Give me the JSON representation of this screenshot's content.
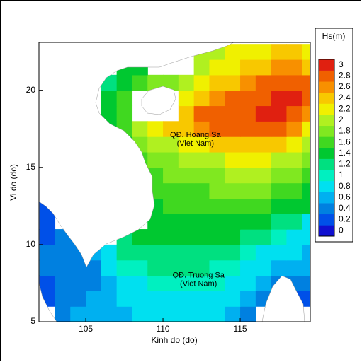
{
  "chart_data": {
    "type": "heatmap",
    "xlabel": "Kinh do (do)",
    "ylabel": "Vi do (do)",
    "xlim": [
      101.97,
      119.54
    ],
    "ylim": [
      5,
      23.1
    ],
    "xticks": [
      105,
      110,
      115
    ],
    "yticks": [
      5,
      10,
      15,
      20
    ],
    "annotations": [
      {
        "lines": [
          "QĐ. Hoang Sa",
          "(Viet Nam)"
        ],
        "lon": 112.1,
        "lat": 17.1
      },
      {
        "lines": [
          "QĐ. Truong Sa",
          "(Viet Nam)"
        ],
        "lon": 112.3,
        "lat": 8.0
      }
    ],
    "field": {
      "lon": [
        102.5,
        103.5,
        104.5,
        105.5,
        106.5,
        107.5,
        108.5,
        109.5,
        110.5,
        111.5,
        112.5,
        113.5,
        114.5,
        115.5,
        116.5,
        117.5,
        118.5,
        119.5
      ],
      "lat": [
        5.5,
        6.5,
        7.5,
        8.5,
        9.5,
        10.5,
        11.5,
        12.5,
        13.5,
        14.5,
        15.5,
        16.5,
        17.5,
        18.5,
        19.5,
        20.5,
        21.5,
        22.5
      ],
      "hs": [
        [
          null,
          0.4,
          0.6,
          0.6,
          0.7,
          0.7,
          0.8,
          0.8,
          0.8,
          0.8,
          0.8,
          0.8,
          0.7,
          0.5,
          null,
          null,
          null,
          null
        ],
        [
          0.2,
          0.4,
          0.5,
          0.6,
          0.7,
          0.8,
          0.8,
          0.9,
          0.9,
          0.9,
          0.9,
          0.9,
          0.8,
          0.6,
          0.4,
          0.3,
          0.3,
          0.3
        ],
        [
          0.3,
          0.4,
          0.4,
          0.5,
          0.7,
          0.9,
          0.9,
          1.0,
          1.0,
          1.0,
          1.0,
          1.0,
          0.9,
          0.8,
          0.6,
          0.5,
          0.4,
          0.5
        ],
        [
          0.4,
          0.4,
          0.4,
          0.5,
          0.8,
          1.0,
          1.0,
          1.1,
          1.1,
          1.1,
          1.1,
          1.0,
          1.0,
          0.9,
          0.8,
          0.7,
          0.6,
          0.6
        ],
        [
          0.4,
          0.4,
          0.5,
          0.6,
          0.9,
          1.1,
          1.2,
          1.2,
          1.2,
          1.2,
          1.2,
          1.2,
          1.1,
          1.0,
          0.9,
          0.9,
          0.8,
          0.7
        ],
        [
          0.3,
          0.4,
          0.5,
          null,
          null,
          1.2,
          1.3,
          1.3,
          1.3,
          1.3,
          1.3,
          1.3,
          1.3,
          1.2,
          1.1,
          1.0,
          0.9,
          0.8
        ],
        [
          0.3,
          null,
          null,
          null,
          null,
          null,
          null,
          1.4,
          1.4,
          1.4,
          1.4,
          1.4,
          1.4,
          1.4,
          1.3,
          1.2,
          1.1,
          0.9
        ],
        [
          0.3,
          null,
          null,
          null,
          null,
          null,
          null,
          1.5,
          1.6,
          1.6,
          1.6,
          1.6,
          1.6,
          1.6,
          1.6,
          1.5,
          1.4,
          1.3
        ],
        [
          null,
          null,
          null,
          null,
          null,
          null,
          null,
          1.6,
          1.7,
          1.7,
          1.7,
          1.8,
          1.8,
          1.8,
          1.8,
          1.7,
          1.6,
          1.4
        ],
        [
          null,
          null,
          null,
          null,
          null,
          null,
          null,
          1.7,
          1.8,
          1.8,
          1.9,
          1.9,
          2.0,
          2.0,
          2.0,
          1.9,
          1.8,
          1.6
        ],
        [
          null,
          null,
          null,
          null,
          null,
          null,
          1.7,
          1.8,
          1.9,
          2.0,
          2.1,
          2.1,
          2.2,
          2.2,
          2.2,
          2.1,
          2.0,
          1.8
        ],
        [
          null,
          null,
          null,
          null,
          null,
          1.5,
          1.9,
          2.0,
          2.1,
          2.2,
          2.3,
          2.4,
          2.4,
          2.4,
          2.4,
          2.4,
          2.2,
          2.0
        ],
        [
          null,
          null,
          null,
          null,
          1.5,
          1.7,
          2.1,
          2.2,
          2.4,
          2.5,
          2.6,
          2.7,
          2.8,
          2.8,
          2.8,
          2.8,
          2.6,
          2.3
        ],
        [
          null,
          null,
          null,
          null,
          1.4,
          1.6,
          null,
          null,
          null,
          2.5,
          2.7,
          2.8,
          2.8,
          2.9,
          3.0,
          3.0,
          2.9,
          2.6
        ],
        [
          null,
          null,
          null,
          null,
          1.4,
          1.6,
          null,
          null,
          null,
          2.3,
          2.5,
          2.6,
          2.7,
          2.8,
          2.9,
          3.0,
          3.0,
          2.8
        ],
        [
          null,
          null,
          null,
          null,
          1.2,
          1.5,
          1.7,
          1.9,
          1.9,
          2.0,
          2.2,
          2.4,
          2.5,
          2.6,
          2.7,
          2.8,
          2.8,
          2.7
        ],
        [
          null,
          null,
          null,
          null,
          null,
          1.3,
          1.5,
          null,
          null,
          null,
          2.0,
          2.2,
          2.3,
          2.4,
          2.5,
          2.6,
          2.6,
          2.5
        ],
        [
          null,
          null,
          null,
          null,
          null,
          null,
          null,
          null,
          null,
          null,
          2.0,
          2.1,
          2.2,
          2.3,
          2.3,
          2.4,
          2.4,
          2.3
        ]
      ]
    },
    "colorbar": {
      "title": "Hs(m)",
      "ticks": [
        0,
        0.2,
        0.4,
        0.6,
        0.8,
        1,
        1.2,
        1.4,
        1.6,
        1.8,
        2,
        2.2,
        2.4,
        2.6,
        2.8,
        3
      ],
      "colors": [
        "#1010d0",
        "#0050e8",
        "#0080e0",
        "#00b0f0",
        "#00e0f0",
        "#00f0c0",
        "#00e080",
        "#00c830",
        "#40d820",
        "#80e820",
        "#b0f020",
        "#f0f000",
        "#f8c800",
        "#f89000",
        "#f06000",
        "#e02010"
      ]
    }
  }
}
